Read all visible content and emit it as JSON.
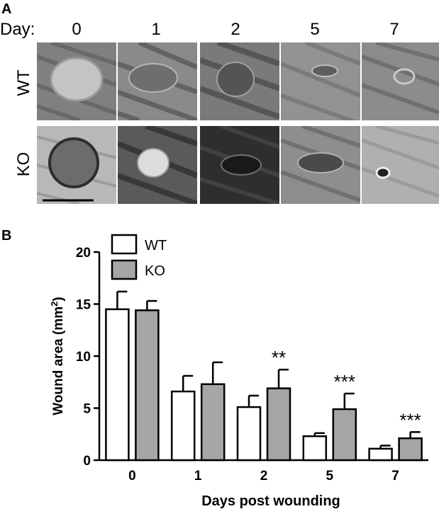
{
  "panel_a": {
    "letter": "A",
    "day_prefix": "Day:",
    "days": [
      "0",
      "1",
      "2",
      "5",
      "7"
    ],
    "rows": [
      "WT",
      "KO"
    ]
  },
  "panel_b": {
    "letter": "B"
  },
  "chart_data": {
    "type": "bar",
    "categories": [
      "0",
      "1",
      "2",
      "5",
      "7"
    ],
    "series": [
      {
        "name": "WT",
        "values": [
          14.5,
          6.6,
          5.1,
          2.3,
          1.1
        ],
        "errors": [
          1.7,
          1.5,
          1.1,
          0.3,
          0.3
        ],
        "color": "#ffffff"
      },
      {
        "name": "KO",
        "values": [
          14.4,
          7.3,
          6.9,
          4.9,
          2.1
        ],
        "errors": [
          0.9,
          2.1,
          1.8,
          1.5,
          0.6
        ],
        "color": "#a6a6a6"
      }
    ],
    "significance": [
      "",
      "",
      "**",
      "***",
      "***"
    ],
    "xlabel": "Days post wounding",
    "ylabel": "Wound area (mm",
    "ylabel_sup": "2",
    "ylabel_close": ")",
    "ylim": [
      0,
      20
    ],
    "yticks": [
      "0",
      "5",
      "10",
      "15",
      "20"
    ],
    "legend_placement": "top-left",
    "grid": false
  }
}
